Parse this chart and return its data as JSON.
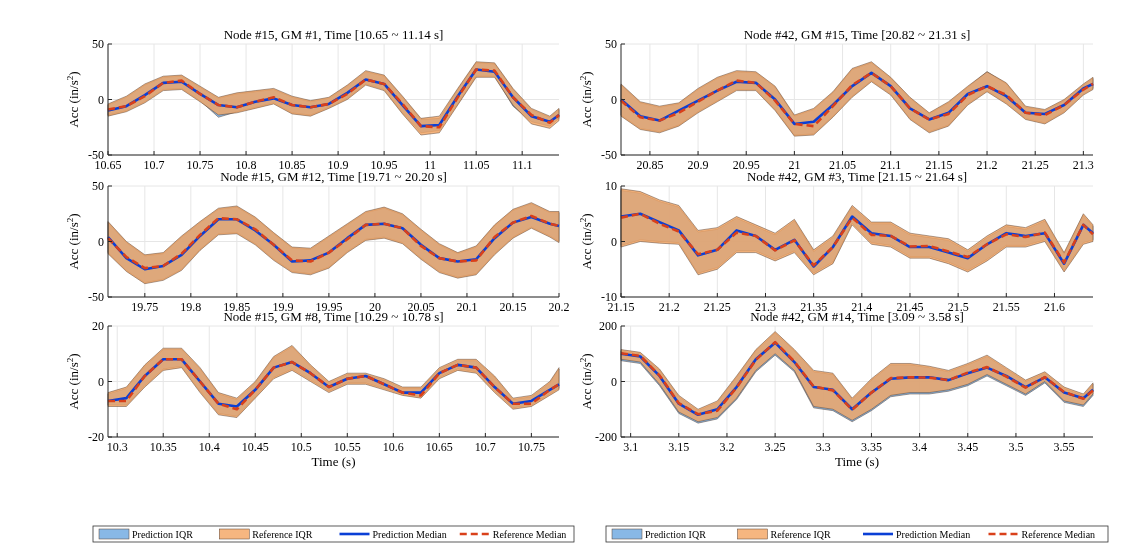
{
  "chart_data": [
    {
      "type": "line",
      "title": "Node #15, GM #1, Time [10.65 ~ 11.14 s]",
      "ylabel": "Acc (in/s$^{2}$)",
      "xlim": [
        10.65,
        11.14
      ],
      "xticks": [
        10.65,
        10.7,
        10.75,
        10.8,
        10.85,
        10.9,
        10.95,
        11,
        11.05,
        11.1
      ],
      "ylim": [
        -50,
        50
      ],
      "yticks": [
        -50,
        0,
        50
      ],
      "grid": true,
      "x": [
        10.65,
        10.67,
        10.69,
        10.71,
        10.73,
        10.75,
        10.77,
        10.79,
        10.81,
        10.83,
        10.85,
        10.87,
        10.89,
        10.91,
        10.93,
        10.95,
        10.97,
        10.99,
        11.01,
        11.03,
        11.05,
        11.07,
        11.09,
        11.11,
        11.13,
        11.14
      ],
      "series": [
        {
          "color": "#0a3fd6",
          "line_style": "solid",
          "values": [
            -10,
            -6,
            4,
            15,
            16,
            5,
            -5,
            -7,
            -2,
            1,
            -5,
            -7,
            -4,
            6,
            18,
            14,
            -5,
            -24,
            -23,
            3,
            27,
            25,
            2,
            -15,
            -20,
            -14
          ],
          "lower": [
            -14,
            -10,
            -2,
            9,
            10,
            -1,
            -16,
            -11,
            -7,
            -3,
            -12,
            -14,
            -7,
            1,
            14,
            9,
            -12,
            -30,
            -28,
            -4,
            21,
            21,
            -6,
            -20,
            -24,
            -17
          ],
          "upper": [
            -5,
            2,
            13,
            20,
            21,
            11,
            1,
            5,
            7,
            9,
            2,
            -2,
            1,
            12,
            25,
            21,
            2,
            -18,
            -17,
            9,
            33,
            32,
            9,
            -9,
            -16,
            -9
          ]
        },
        {
          "color": "#d9401a",
          "line_style": "dashed",
          "values": [
            -9,
            -6,
            3,
            15,
            17,
            5,
            -5,
            -7,
            -2,
            2,
            -5,
            -7,
            -4,
            5,
            18,
            14,
            -4,
            -24,
            -25,
            2,
            27,
            26,
            2,
            -14,
            -21,
            -14
          ],
          "lower": [
            -15,
            -11,
            -3,
            8,
            9,
            -2,
            -14,
            -12,
            -8,
            -4,
            -13,
            -15,
            -8,
            0,
            13,
            8,
            -13,
            -32,
            -30,
            -5,
            20,
            20,
            -5,
            -22,
            -26,
            -19
          ],
          "upper": [
            -4,
            3,
            14,
            21,
            22,
            12,
            2,
            6,
            8,
            10,
            3,
            -1,
            2,
            13,
            26,
            22,
            3,
            -17,
            -15,
            10,
            34,
            33,
            10,
            -8,
            -15,
            -8
          ]
        }
      ]
    },
    {
      "type": "line",
      "title": "Node #42, GM #15, Time [20.82 ~ 21.31 s]",
      "ylabel": "Acc (in/s$^{2}$)",
      "xlim": [
        20.82,
        21.31
      ],
      "xticks": [
        20.85,
        20.9,
        20.95,
        21,
        21.05,
        21.1,
        21.15,
        21.2,
        21.25,
        21.3
      ],
      "ylim": [
        -50,
        50
      ],
      "yticks": [
        -50,
        0,
        50
      ],
      "grid": true,
      "x": [
        20.82,
        20.84,
        20.86,
        20.88,
        20.9,
        20.92,
        20.94,
        20.96,
        20.98,
        21,
        21.02,
        21.04,
        21.06,
        21.08,
        21.1,
        21.12,
        21.14,
        21.16,
        21.18,
        21.2,
        21.22,
        21.24,
        21.26,
        21.28,
        21.3,
        21.31
      ],
      "series": [
        {
          "color": "#0a3fd6",
          "line_style": "solid",
          "values": [
            0,
            -15,
            -19,
            -10,
            -1,
            8,
            16,
            15,
            0,
            -22,
            -20,
            -5,
            12,
            24,
            12,
            -8,
            -18,
            -12,
            5,
            12,
            3,
            -12,
            -13,
            -5,
            10,
            14
          ],
          "lower": [
            -14,
            -26,
            -29,
            -23,
            -11,
            -1,
            9,
            9,
            -9,
            -32,
            -31,
            -15,
            3,
            17,
            5,
            -17,
            -29,
            -23,
            -4,
            8,
            -3,
            -17,
            -21,
            -11,
            5,
            10
          ],
          "upper": [
            13,
            -3,
            -7,
            -4,
            9,
            19,
            25,
            24,
            11,
            -15,
            -9,
            6,
            27,
            33,
            19,
            1,
            -13,
            -3,
            11,
            25,
            14,
            -7,
            -10,
            -1,
            13,
            19
          ]
        },
        {
          "color": "#d9401a",
          "line_style": "dashed",
          "values": [
            -1,
            -16,
            -19,
            -12,
            -2,
            8,
            17,
            15,
            -1,
            -22,
            -24,
            -6,
            13,
            24,
            12,
            -8,
            -18,
            -13,
            4,
            12,
            4,
            -12,
            -14,
            -5,
            9,
            14
          ],
          "lower": [
            -15,
            -27,
            -30,
            -24,
            -12,
            -2,
            8,
            8,
            -10,
            -33,
            -32,
            -16,
            2,
            16,
            4,
            -18,
            -30,
            -24,
            -5,
            7,
            -4,
            -18,
            -22,
            -12,
            4,
            9
          ],
          "upper": [
            14,
            -2,
            -6,
            -3,
            10,
            20,
            26,
            25,
            12,
            -14,
            -8,
            7,
            28,
            34,
            20,
            2,
            -12,
            -2,
            12,
            25,
            15,
            -6,
            -9,
            0,
            14,
            20
          ]
        }
      ]
    },
    {
      "type": "line",
      "title": "Node #15, GM #12, Time [19.71 ~ 20.20 s]",
      "ylabel": "Acc (in/s$^{2}$)",
      "xlim": [
        19.71,
        20.2
      ],
      "xticks": [
        19.75,
        19.8,
        19.85,
        19.9,
        19.95,
        20,
        20.05,
        20.1,
        20.15,
        20.2
      ],
      "ylim": [
        -50,
        50
      ],
      "yticks": [
        -50,
        0,
        50
      ],
      "grid": true,
      "x": [
        19.71,
        19.73,
        19.75,
        19.77,
        19.79,
        19.81,
        19.83,
        19.85,
        19.87,
        19.89,
        19.91,
        19.93,
        19.95,
        19.97,
        19.99,
        20.01,
        20.03,
        20.05,
        20.07,
        20.09,
        20.11,
        20.13,
        20.15,
        20.17,
        20.19,
        20.2
      ],
      "series": [
        {
          "color": "#0a3fd6",
          "line_style": "solid",
          "values": [
            4,
            -15,
            -25,
            -22,
            -12,
            5,
            20,
            20,
            10,
            -3,
            -18,
            -17,
            -10,
            3,
            15,
            16,
            12,
            -3,
            -15,
            -18,
            -16,
            3,
            17,
            22,
            16,
            14
          ],
          "lower": [
            -10,
            -26,
            -37,
            -34,
            -25,
            -7,
            7,
            8,
            -2,
            -16,
            -27,
            -29,
            -23,
            -9,
            2,
            4,
            -1,
            -15,
            -27,
            -32,
            -29,
            -11,
            4,
            13,
            5,
            0
          ],
          "upper": [
            17,
            -1,
            -13,
            -11,
            4,
            17,
            29,
            31,
            21,
            7,
            -6,
            -7,
            4,
            15,
            26,
            30,
            24,
            10,
            -3,
            -11,
            -5,
            14,
            28,
            34,
            26,
            26
          ]
        },
        {
          "color": "#d9401a",
          "line_style": "dashed",
          "values": [
            3,
            -14,
            -24,
            -22,
            -11,
            6,
            21,
            20,
            11,
            -3,
            -17,
            -18,
            -10,
            2,
            15,
            16,
            12,
            -4,
            -15,
            -18,
            -17,
            4,
            17,
            23,
            16,
            14
          ],
          "lower": [
            -11,
            -27,
            -38,
            -35,
            -26,
            -8,
            6,
            7,
            -3,
            -17,
            -28,
            -30,
            -24,
            -10,
            1,
            3,
            -2,
            -16,
            -28,
            -33,
            -30,
            -12,
            3,
            12,
            4,
            -1
          ],
          "upper": [
            18,
            0,
            -12,
            -10,
            5,
            18,
            30,
            32,
            22,
            8,
            -5,
            -6,
            5,
            16,
            27,
            31,
            25,
            11,
            -2,
            -10,
            -4,
            15,
            29,
            35,
            27,
            27
          ]
        }
      ]
    },
    {
      "type": "line",
      "title": "Node #42, GM #3, Time [21.15 ~ 21.64 s]",
      "ylabel": "Acc (in/s$^{2}$)",
      "xlim": [
        21.15,
        21.64
      ],
      "xticks": [
        21.15,
        21.2,
        21.25,
        21.3,
        21.35,
        21.4,
        21.45,
        21.5,
        21.55,
        21.6
      ],
      "ylim": [
        -10,
        10
      ],
      "yticks": [
        -10,
        0,
        10
      ],
      "grid": true,
      "x": [
        21.15,
        21.17,
        21.19,
        21.21,
        21.23,
        21.25,
        21.27,
        21.29,
        21.31,
        21.33,
        21.35,
        21.37,
        21.39,
        21.41,
        21.43,
        21.45,
        21.47,
        21.49,
        21.51,
        21.53,
        21.55,
        21.57,
        21.59,
        21.61,
        21.63,
        21.64
      ],
      "series": [
        {
          "color": "#0a3fd6",
          "line_style": "solid",
          "values": [
            4.5,
            5,
            3.5,
            2,
            -2.5,
            -1.5,
            2,
            1,
            -1.5,
            0.3,
            -4.5,
            -1,
            4.5,
            1.5,
            1,
            -1,
            -1,
            -2,
            -3,
            -0.5,
            1.5,
            1,
            1.5,
            -4,
            3,
            1.5
          ],
          "lower": [
            -0.7,
            0.3,
            0,
            -0.2,
            -5.7,
            -4.7,
            -1.7,
            -1.7,
            -3.2,
            -1.7,
            -5.7,
            -3.7,
            3.3,
            -0.2,
            -0.7,
            -2.7,
            -2.7,
            -3.7,
            -5.2,
            -3.2,
            -0.7,
            -0.7,
            0.3,
            -5.2,
            -0.2,
            0.3
          ],
          "upper": [
            9.2,
            8.7,
            7.2,
            6.2,
            1.7,
            2.2,
            4.2,
            2.7,
            1.2,
            3.7,
            -1.8,
            0.7,
            6.2,
            3.2,
            3.2,
            1.2,
            0.7,
            0.2,
            -1.8,
            0.7,
            2.7,
            2.2,
            3.7,
            -2.3,
            4.7,
            2.7
          ]
        },
        {
          "color": "#d9401a",
          "line_style": "dashed",
          "values": [
            4.3,
            5,
            3.2,
            1.8,
            -2.3,
            -1.5,
            1.6,
            1,
            -1.6,
            0.2,
            -4.3,
            -1,
            4.3,
            1.2,
            1,
            -0.9,
            -0.8,
            -1.8,
            -2.8,
            -0.5,
            1.3,
            0.8,
            1.6,
            -3.8,
            3,
            1.3
          ],
          "lower": [
            -1,
            0,
            -0.3,
            -0.5,
            -6,
            -5,
            -2,
            -2,
            -3.5,
            -2,
            -6,
            -4,
            3,
            -0.5,
            -1,
            -3,
            -3,
            -4,
            -5.5,
            -3.5,
            -1,
            -1,
            0,
            -5.5,
            -0.5,
            0
          ],
          "upper": [
            9.5,
            9,
            7.5,
            6.5,
            2,
            2.5,
            4.5,
            3,
            1.5,
            4,
            -1.5,
            1,
            6.5,
            3.5,
            3.5,
            1.5,
            1,
            0.5,
            -1.5,
            1,
            3,
            2.5,
            4,
            -2,
            5,
            3
          ]
        }
      ]
    },
    {
      "type": "line",
      "title": "Node #15, GM #8, Time [10.29 ~ 10.78 s]",
      "xlabel": "Time (s)",
      "ylabel": "Acc (in/s$^{2}$)",
      "xlim": [
        10.29,
        10.78
      ],
      "xticks": [
        10.3,
        10.35,
        10.4,
        10.45,
        10.5,
        10.55,
        10.6,
        10.65,
        10.7,
        10.75
      ],
      "ylim": [
        -20,
        20
      ],
      "yticks": [
        -20,
        0,
        20
      ],
      "grid": true,
      "legend": "bottom",
      "annotations": [
        "Prediction IQR",
        "Reference IQR"
      ],
      "x": [
        10.29,
        10.31,
        10.33,
        10.35,
        10.37,
        10.39,
        10.41,
        10.43,
        10.45,
        10.47,
        10.49,
        10.51,
        10.53,
        10.55,
        10.57,
        10.59,
        10.61,
        10.63,
        10.65,
        10.67,
        10.69,
        10.71,
        10.73,
        10.75,
        10.77,
        10.78
      ],
      "series": [
        {
          "name": "Prediction Median",
          "color": "#0a3fd6",
          "line_style": "solid",
          "values": [
            -7,
            -6,
            2,
            8,
            8,
            0,
            -8,
            -9,
            -3,
            5,
            7,
            3,
            -2,
            1,
            2,
            -1,
            -4,
            -4,
            3,
            6,
            5,
            -2,
            -8,
            -7,
            -3,
            -1
          ],
          "lower": [
            -8.5,
            -8.5,
            -1.5,
            4.5,
            5.5,
            -3.5,
            -11.5,
            -12.5,
            -5.5,
            1.5,
            4.5,
            0.5,
            -3.5,
            -0.5,
            -0.5,
            -2.5,
            -4.5,
            -5.5,
            1.5,
            4.5,
            3.5,
            -3.5,
            -9.5,
            -8.5,
            -4.5,
            -2.5
          ],
          "upper": [
            -4.5,
            -2.5,
            5.5,
            11.5,
            11.5,
            4.5,
            -4.5,
            -6.5,
            -0.5,
            8.5,
            12.5,
            5.5,
            -0.5,
            2.5,
            2.5,
            0.5,
            -2.5,
            -2.5,
            4.5,
            7.5,
            7.5,
            1.5,
            -6.5,
            -5.5,
            -0.5,
            4.5
          ]
        },
        {
          "name": "Reference Median",
          "color": "#d9401a",
          "line_style": "dashed",
          "values": [
            -7,
            -7,
            2,
            8,
            8,
            0,
            -8,
            -10,
            -3,
            5,
            7,
            3,
            -2,
            1,
            2,
            -1,
            -4,
            -5,
            3,
            6,
            5,
            -2,
            -8,
            -8,
            -3,
            -1
          ],
          "lower": [
            -9,
            -9,
            -2,
            4,
            5,
            -4,
            -12,
            -13,
            -6,
            1,
            4,
            0,
            -4,
            -1,
            -1,
            -3,
            -5,
            -6,
            1,
            4,
            3,
            -4,
            -10,
            -9,
            -5,
            -3
          ],
          "upper": [
            -4,
            -2,
            6,
            12,
            12,
            5,
            -4,
            -6,
            0,
            9,
            13,
            6,
            0,
            3,
            3,
            1,
            -2,
            -2,
            5,
            8,
            8,
            2,
            -6,
            -5,
            0,
            5
          ]
        }
      ]
    },
    {
      "type": "line",
      "title": "Node #42, GM #14, Time [3.09 ~ 3.58 s]",
      "xlabel": "Time (s)",
      "ylabel": "Acc (in/s$^{2}$)",
      "xlim": [
        3.09,
        3.58
      ],
      "xticks": [
        3.1,
        3.15,
        3.2,
        3.25,
        3.3,
        3.35,
        3.4,
        3.45,
        3.5,
        3.55
      ],
      "ylim": [
        -200,
        200
      ],
      "yticks": [
        -200,
        0,
        200
      ],
      "grid": true,
      "legend": "bottom",
      "annotations": [
        "Prediction IQR",
        "Reference IQR"
      ],
      "x": [
        3.09,
        3.11,
        3.13,
        3.15,
        3.17,
        3.19,
        3.21,
        3.23,
        3.25,
        3.27,
        3.29,
        3.31,
        3.33,
        3.35,
        3.37,
        3.39,
        3.41,
        3.43,
        3.45,
        3.47,
        3.49,
        3.51,
        3.53,
        3.55,
        3.57,
        3.58
      ],
      "series": [
        {
          "name": "Prediction Median",
          "color": "#0a3fd6",
          "line_style": "solid",
          "values": [
            100,
            90,
            20,
            -80,
            -120,
            -100,
            -20,
            80,
            140,
            70,
            -20,
            -30,
            -100,
            -40,
            10,
            15,
            15,
            5,
            30,
            50,
            20,
            -20,
            15,
            -40,
            -60,
            -30
          ],
          "lower": [
            75,
            65,
            -15,
            -115,
            -150,
            -135,
            -65,
            35,
            95,
            35,
            -95,
            -105,
            -145,
            -105,
            -55,
            -45,
            -45,
            -35,
            -15,
            20,
            -15,
            -50,
            -5,
            -75,
            -90,
            -50
          ],
          "upper": [
            110,
            100,
            40,
            -55,
            -105,
            -75,
            15,
            110,
            175,
            110,
            35,
            25,
            -65,
            5,
            60,
            60,
            50,
            35,
            60,
            90,
            45,
            0,
            30,
            -25,
            -50,
            -10
          ]
        },
        {
          "name": "Reference Median",
          "color": "#d9401a",
          "line_style": "dashed",
          "values": [
            102,
            92,
            22,
            -78,
            -118,
            -105,
            -22,
            78,
            142,
            72,
            -18,
            -32,
            -102,
            -40,
            12,
            15,
            14,
            5,
            32,
            52,
            18,
            -22,
            16,
            -38,
            -62,
            -32
          ],
          "lower": [
            80,
            70,
            -10,
            -110,
            -145,
            -130,
            -60,
            40,
            100,
            40,
            -90,
            -100,
            -140,
            -100,
            -50,
            -40,
            -40,
            -30,
            -10,
            25,
            -10,
            -45,
            0,
            -70,
            -85,
            -45
          ],
          "upper": [
            115,
            105,
            45,
            -50,
            -100,
            -70,
            20,
            115,
            180,
            115,
            40,
            30,
            -60,
            10,
            65,
            65,
            55,
            40,
            65,
            95,
            50,
            5,
            35,
            -20,
            -45,
            -5
          ]
        }
      ]
    }
  ]
}
